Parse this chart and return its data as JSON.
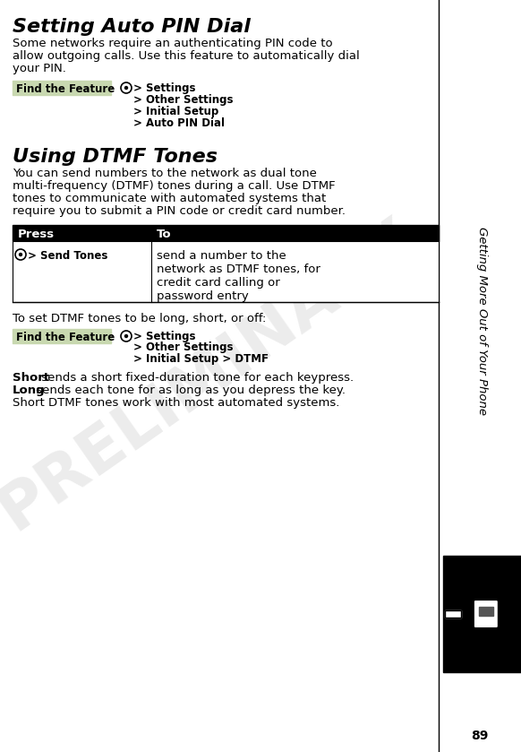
{
  "page_number": "89",
  "sidebar_text": "Getting More Out of Your Phone",
  "title1": "Setting Auto PIN Dial",
  "body1": "Some networks require an authenticating PIN code to\nallow outgoing calls. Use this feature to automatically dial\nyour PIN.",
  "find_feature_label": "Find the Feature",
  "find_feature1_menu": [
    "M > Settings",
    "  > Other Settings",
    "  > Initial Setup",
    "  > Auto PIN Dial"
  ],
  "title2": "Using DTMF Tones",
  "body2": "You can send numbers to the network as dual tone\nmulti-frequency (DTMF) tones during a call. Use DTMF\ntones to communicate with automated systems that\nrequire you to submit a PIN code or credit card number.",
  "table_header_press": "Press",
  "table_header_to": "To",
  "table_row_press": "M > Send Tones",
  "table_row_to": "send a number to the\nnetwork as DTMF tones, for\ncredit card calling or\npassword entry",
  "body3": "To set DTMF tones to be long, short, or off:",
  "find_feature2_menu": [
    "M > Settings",
    "  > Other Settings",
    "  > Initial Setup > DTMF"
  ],
  "body4_short": "Short",
  "body4_rest": " sends a short fixed-duration tone for each keypress.",
  "body5_long": "Long",
  "body5_rest": " sends each tone for as long as you depress the key.",
  "body6": "Short DTMF tones work with most automated systems.",
  "preliminary_watermark": "PRELIMINARY",
  "bg_color": "#ffffff",
  "sidebar_bg": "#000000",
  "sidebar_text_color": "#ffffff",
  "header_bg": "#000000",
  "header_text_color": "#ffffff",
  "find_feature_bg": "#d3d3d3",
  "table_border_color": "#000000",
  "main_text_color": "#000000",
  "watermark_color": "#c8c8c8"
}
